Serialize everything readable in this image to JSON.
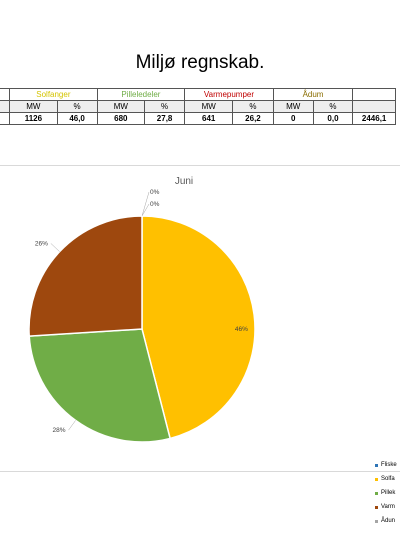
{
  "page_title": "Miljø regnskab.",
  "table": {
    "groups": [
      {
        "name": "",
        "color": "#000000"
      },
      {
        "name": "Solfanger",
        "color": "#d4c400"
      },
      {
        "name": "Pilleledeler",
        "color": "#70ad47"
      },
      {
        "name": "Varmepumper",
        "color": "#c00000"
      },
      {
        "name": "Ådum",
        "color": "#8a6d00"
      },
      {
        "name": "",
        "color": "#000000"
      }
    ],
    "subheaders": [
      "",
      "MW",
      "%",
      "MW",
      "%",
      "MW",
      "%",
      "MW",
      "%",
      ""
    ],
    "values": [
      "",
      "1126",
      "46,0",
      "680",
      "27,8",
      "641",
      "26,2",
      "0",
      "0,0",
      "2446,1"
    ]
  },
  "chart_data": {
    "type": "pie",
    "title": "Juni",
    "slices": [
      {
        "label": "Fliske",
        "value": 0,
        "percent_label": "0%",
        "color": "#2e75b6"
      },
      {
        "label": "Solfa",
        "value": 46,
        "percent_label": "46%",
        "color": "#ffc000"
      },
      {
        "label": "Pillek",
        "value": 28,
        "percent_label": "28%",
        "color": "#70ad47"
      },
      {
        "label": "Varm",
        "value": 26,
        "percent_label": "26%",
        "color": "#9e480e"
      },
      {
        "label": "Ådun",
        "value": 0,
        "percent_label": "0%",
        "color": "#a5a5a5"
      }
    ],
    "legend_position": "right"
  }
}
